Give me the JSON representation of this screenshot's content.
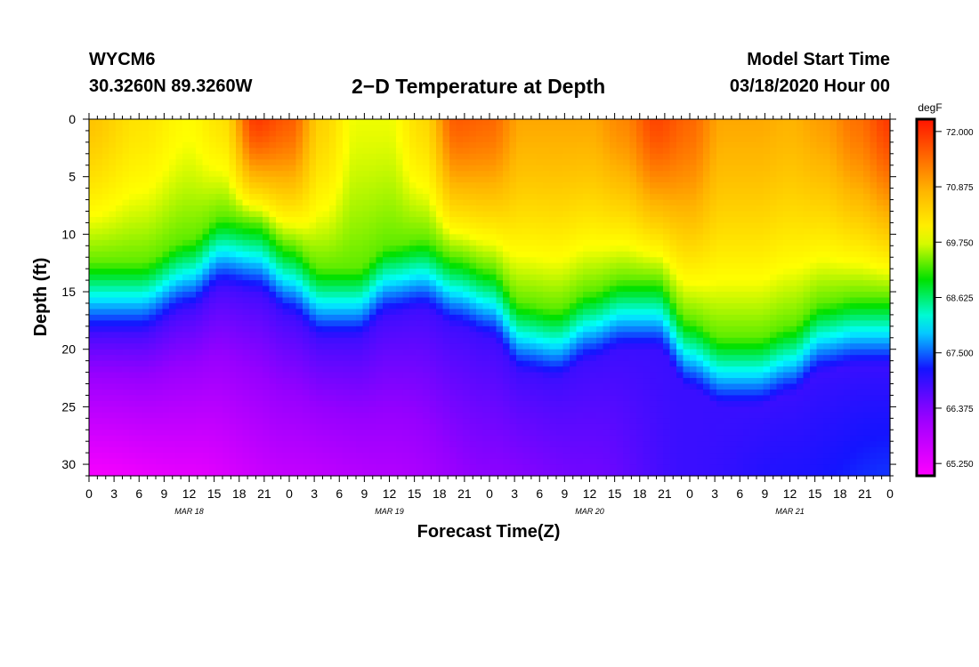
{
  "header": {
    "station": "WYCM6",
    "coordinates": "30.3260N 89.3260W",
    "title": "2−D Temperature at Depth",
    "model_start_label": "Model Start Time",
    "model_start_value": "03/18/2020 Hour 00"
  },
  "chart_data": {
    "type": "heatmap",
    "title": "2−D Temperature at Depth",
    "xlabel": "Forecast Time(Z)",
    "ylabel": "Depth (ft)",
    "x_range_hours": [
      0,
      96
    ],
    "ylim": [
      0,
      31
    ],
    "x_tick_hours": [
      0,
      3,
      6,
      9,
      12,
      15,
      18,
      21,
      24,
      27,
      30,
      33,
      36,
      39,
      42,
      45,
      48,
      51,
      54,
      57,
      60,
      63,
      66,
      69,
      72,
      75,
      78,
      81,
      84,
      87,
      90,
      93,
      96
    ],
    "x_tick_labels": [
      "0",
      "3",
      "6",
      "9",
      "12",
      "15",
      "18",
      "21",
      "0",
      "3",
      "6",
      "9",
      "12",
      "15",
      "18",
      "21",
      "0",
      "3",
      "6",
      "9",
      "12",
      "15",
      "18",
      "21",
      "0",
      "3",
      "6",
      "9",
      "12",
      "15",
      "18",
      "21",
      "0"
    ],
    "y_ticks": [
      0,
      5,
      10,
      15,
      20,
      25,
      30
    ],
    "y_tick_labels": [
      "0",
      "5",
      "10",
      "15",
      "20",
      "25",
      "30"
    ],
    "date_labels": [
      {
        "hour": 12,
        "text": "MAR 18"
      },
      {
        "hour": 36,
        "text": "MAR 19"
      },
      {
        "hour": 60,
        "text": "MAR 20"
      },
      {
        "hour": 84,
        "text": "MAR 21"
      }
    ],
    "colorbar": {
      "units": "degF",
      "min": 65.0,
      "max": 72.25,
      "tick_values": [
        72.0,
        70.875,
        69.75,
        68.625,
        67.5,
        66.375,
        65.25
      ],
      "tick_labels": [
        "72.000",
        "70.875",
        "69.750",
        "68.625",
        "67.500",
        "66.375",
        "65.250"
      ]
    },
    "grid": false,
    "thermocline_depth_ft": {
      "hours": [
        0,
        6,
        12,
        16,
        20,
        24,
        28,
        32,
        36,
        40,
        44,
        48,
        52,
        56,
        60,
        64,
        68,
        72,
        76,
        80,
        84,
        88,
        92,
        96
      ],
      "values": [
        15.5,
        15.5,
        13.5,
        11.5,
        12,
        14,
        16,
        16,
        14,
        13.5,
        15,
        16,
        19,
        19.5,
        18,
        17,
        17,
        20.5,
        22,
        22,
        21,
        19,
        18.5,
        18.5
      ]
    },
    "surface_temperature_degF": {
      "hours": [
        0,
        6,
        12,
        16,
        20,
        24,
        28,
        32,
        36,
        40,
        44,
        48,
        52,
        56,
        60,
        64,
        68,
        72,
        76,
        80,
        84,
        88,
        92,
        96
      ],
      "values": [
        70.6,
        70.2,
        69.9,
        70.2,
        71.9,
        71.6,
        70.4,
        69.8,
        69.8,
        70.3,
        71.6,
        71.5,
        70.9,
        70.9,
        70.9,
        71.2,
        71.8,
        71.5,
        70.9,
        70.9,
        70.8,
        71.0,
        71.4,
        71.9
      ]
    },
    "bottom_temperature_degF": {
      "hours": [
        0,
        12,
        24,
        36,
        48,
        60,
        72,
        84,
        96
      ],
      "values": [
        65.1,
        65.3,
        65.7,
        65.9,
        66.3,
        66.5,
        66.9,
        67.1,
        67.3
      ]
    }
  }
}
